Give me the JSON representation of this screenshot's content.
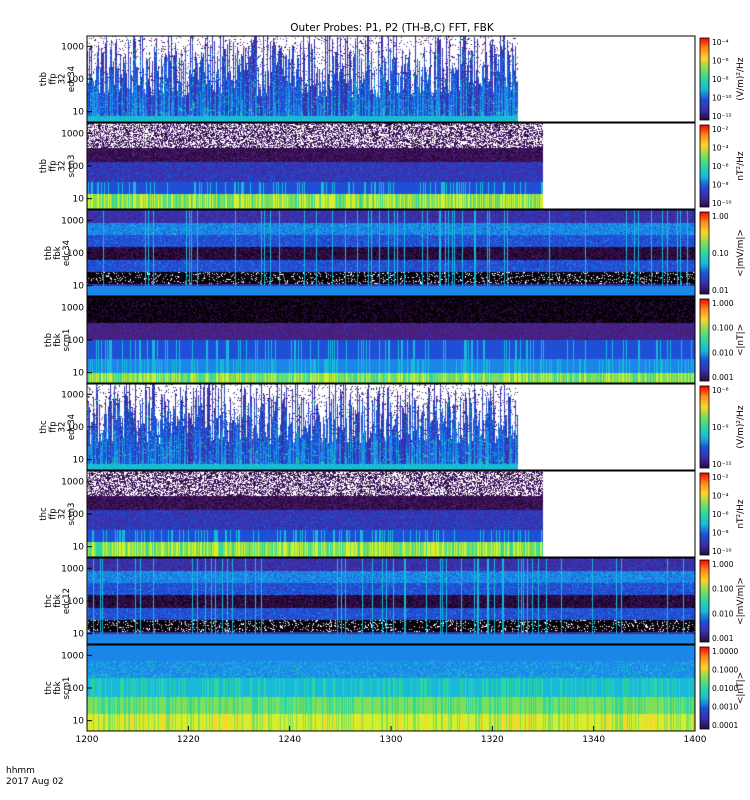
{
  "title": "Outer Probes: P1, P2 (TH-B,C) FFT, FBK",
  "footer": {
    "time_label": "hhmm",
    "date_label": "2017 Aug 02"
  },
  "x_axis": {
    "ticks": [
      "1200",
      "1220",
      "1240",
      "1300",
      "1320",
      "1340",
      "1400"
    ]
  },
  "colors": {
    "palette": [
      "#000000",
      "#2b0a3d",
      "#4b1c74",
      "#3a2fa8",
      "#1f4fd6",
      "#1c86e8",
      "#19b9d8",
      "#2ed6a0",
      "#7ee05a",
      "#d6ef2c",
      "#ffd22a",
      "#ff8a1a",
      "#ff2a12",
      "#ff0000"
    ]
  },
  "chart_data": [
    {
      "type": "heatmap",
      "label_lines": [
        "thb",
        "ffp",
        "32",
        "edc34"
      ],
      "yticks": [
        "10",
        "100",
        "1000"
      ],
      "colorbar": {
        "unit": "(V/m)²/Hz",
        "ticks": [
          "10⁻⁴",
          "10⁻⁶",
          "10⁻⁸",
          "10⁻¹⁰",
          "10⁻¹²"
        ]
      },
      "data_end_time": "1325",
      "style": "spiky"
    },
    {
      "type": "heatmap",
      "label_lines": [
        "thb",
        "ffp",
        "32",
        "scm3"
      ],
      "yticks": [
        "10",
        "100",
        "1000"
      ],
      "colorbar": {
        "unit": "nT²/Hz",
        "ticks": [
          "10⁻²",
          "10⁻⁴",
          "10⁻⁶",
          "10⁻⁸",
          "10⁻¹⁰"
        ]
      },
      "data_end_time": "1330",
      "style": "scm_ffp"
    },
    {
      "type": "heatmap",
      "label_lines": [
        "thb",
        "fbk",
        "edc34"
      ],
      "yticks": [
        "10",
        "100",
        "1000"
      ],
      "colorbar": {
        "unit": "<|mV/m|>",
        "ticks": [
          "1.00",
          "0.10",
          "0.01"
        ]
      },
      "data_end_time": "1400",
      "style": "fbk_e"
    },
    {
      "type": "heatmap",
      "label_lines": [
        "thb",
        "fbk",
        "scm1"
      ],
      "yticks": [
        "10",
        "100",
        "1000"
      ],
      "colorbar": {
        "unit": "<|nT|>",
        "ticks": [
          "1.000",
          "0.100",
          "0.010",
          "0.001"
        ]
      },
      "data_end_time": "1400",
      "style": "fbk_b_dark"
    },
    {
      "type": "heatmap",
      "label_lines": [
        "thc",
        "ffp",
        "32",
        "edc34"
      ],
      "yticks": [
        "10",
        "100",
        "1000"
      ],
      "colorbar": {
        "unit": "(V/m)²/Hz",
        "ticks": [
          "10⁻⁶",
          "10⁻⁹",
          "10⁻¹²"
        ]
      },
      "data_end_time": "1325",
      "style": "spiky"
    },
    {
      "type": "heatmap",
      "label_lines": [
        "thc",
        "ffp",
        "32",
        "scm3"
      ],
      "yticks": [
        "10",
        "100",
        "1000"
      ],
      "colorbar": {
        "unit": "nT²/Hz",
        "ticks": [
          "10⁻²",
          "10⁻⁴",
          "10⁻⁶",
          "10⁻⁸",
          "10⁻¹⁰"
        ]
      },
      "data_end_time": "1330",
      "style": "scm_ffp"
    },
    {
      "type": "heatmap",
      "label_lines": [
        "thc",
        "fbk",
        "edc12"
      ],
      "yticks": [
        "10",
        "100",
        "1000"
      ],
      "colorbar": {
        "unit": "<|mV/m|>",
        "ticks": [
          "1.000",
          "0.100",
          "0.010",
          "0.001"
        ]
      },
      "data_end_time": "1400",
      "style": "fbk_e"
    },
    {
      "type": "heatmap",
      "label_lines": [
        "thc",
        "fbk",
        "scm1"
      ],
      "yticks": [
        "10",
        "100",
        "1000"
      ],
      "colorbar": {
        "unit": "<|nT|>",
        "ticks": [
          "1.0000",
          "0.1000",
          "0.0100",
          "0.0010",
          "0.0001"
        ]
      },
      "data_end_time": "1400",
      "style": "fbk_b_bright"
    }
  ]
}
